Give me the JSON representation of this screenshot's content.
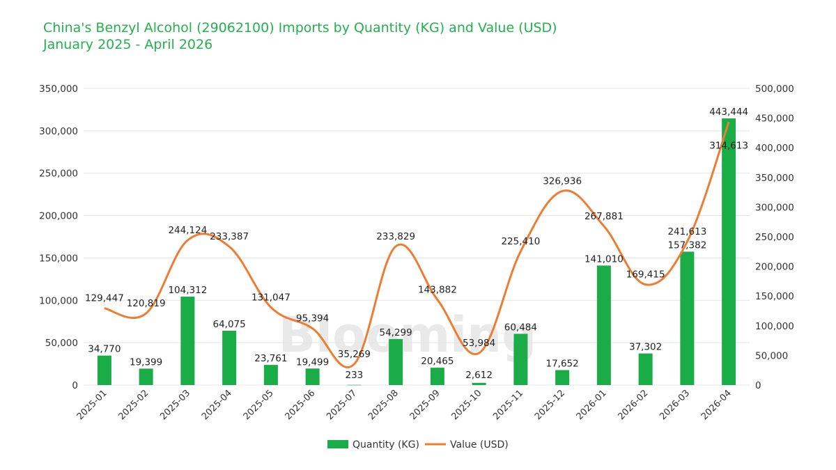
{
  "header": {
    "title": "China's Benzyl Alcohol (29062100) Imports by Quantity (KG) and Value (USD)",
    "subtitle": "January 2025 - April 2026"
  },
  "watermark": "Blooming",
  "colors": {
    "bar": "#1aad47",
    "line": "#ee7d31",
    "title": "#22b14c",
    "grid": "#e3e3e3"
  },
  "chart_data": {
    "type": "bar",
    "title": "China's Benzyl Alcohol (29062100) Imports by Quantity (KG) and Value (USD)",
    "subtitle": "January 2025 - April 2026",
    "categories": [
      "2025-01",
      "2025-02",
      "2025-03",
      "2025-04",
      "2025-05",
      "2025-06",
      "2025-07",
      "2025-08",
      "2025-09",
      "2025-10",
      "2025-11",
      "2025-12",
      "2026-01",
      "2026-02",
      "2026-03",
      "2026-04"
    ],
    "series": [
      {
        "name": "Quantity (KG)",
        "type": "bar",
        "axis": "left",
        "values": [
          34770,
          19399,
          104312,
          64075,
          23761,
          19499,
          233,
          54299,
          20465,
          2612,
          60484,
          17652,
          141010,
          37302,
          157382,
          314613
        ],
        "labels": [
          "34,770",
          "19,399",
          "104,312",
          "64,075",
          "23,761",
          "19,499",
          "233",
          "54,299",
          "20,465",
          "2,612",
          "60,484",
          "17,652",
          "141,010",
          "37,302",
          "157,382",
          "314,613"
        ]
      },
      {
        "name": "Value (USD)",
        "type": "line",
        "axis": "right",
        "values": [
          129447,
          120819,
          244124,
          233387,
          131047,
          95394,
          35269,
          233829,
          143882,
          53984,
          225410,
          326936,
          267881,
          169415,
          241613,
          443444
        ],
        "labels": [
          "129,447",
          "120,819",
          "244,124",
          "233,387",
          "131,047",
          "95,394",
          "35,269",
          "233,829",
          "143,882",
          "53,984",
          "225,410",
          "326,936",
          "267,881",
          "169,415",
          "241,613",
          "443,444"
        ]
      }
    ],
    "ylim_left": [
      0,
      350000
    ],
    "ylim_right": [
      0,
      500000
    ],
    "yticks_left": [
      "0",
      "50,000",
      "100,000",
      "150,000",
      "200,000",
      "250,000",
      "300,000",
      "350,000"
    ],
    "yticks_right": [
      "0",
      "50,000",
      "100,000",
      "150,000",
      "200,000",
      "250,000",
      "300,000",
      "350,000",
      "400,000",
      "450,000",
      "500,000"
    ],
    "grid": true,
    "legend": "bottom"
  }
}
